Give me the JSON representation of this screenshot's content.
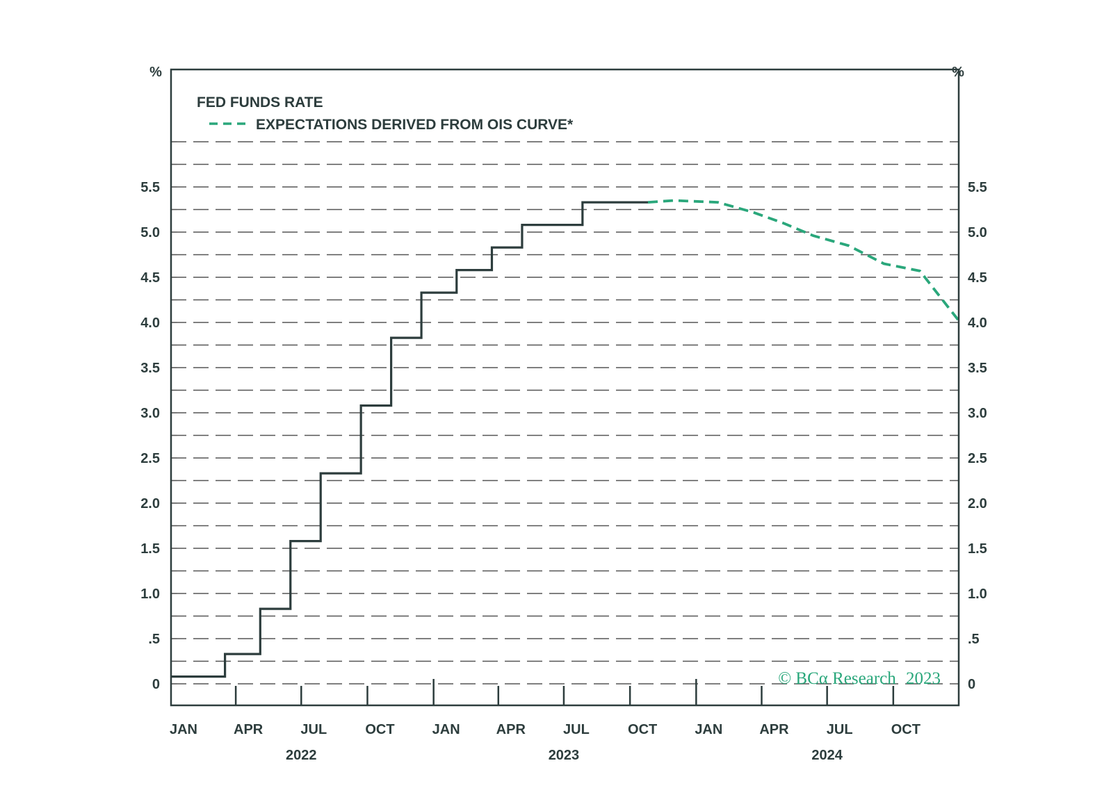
{
  "chart_data": {
    "type": "line",
    "y_unit_left": "%",
    "y_unit_right": "%",
    "ylim": [
      0,
      6
    ],
    "grid": true,
    "y_ticks": [
      {
        "value": 0,
        "label": "0"
      },
      {
        "value": 0.5,
        "label": ".5"
      },
      {
        "value": 1.0,
        "label": "1.0"
      },
      {
        "value": 1.5,
        "label": "1.5"
      },
      {
        "value": 2.0,
        "label": "2.0"
      },
      {
        "value": 2.5,
        "label": "2.5"
      },
      {
        "value": 3.0,
        "label": "3.0"
      },
      {
        "value": 3.5,
        "label": "3.5"
      },
      {
        "value": 4.0,
        "label": "4.0"
      },
      {
        "value": 4.5,
        "label": "4.5"
      },
      {
        "value": 5.0,
        "label": "5.0"
      },
      {
        "value": 5.5,
        "label": "5.5"
      }
    ],
    "xlim": [
      "2022-01-01",
      "2024-12-31"
    ],
    "x_month_ticks": [
      {
        "date": "2022-01-01",
        "label": "JAN"
      },
      {
        "date": "2022-04-01",
        "label": "APR"
      },
      {
        "date": "2022-07-01",
        "label": "JUL"
      },
      {
        "date": "2022-10-01",
        "label": "OCT"
      },
      {
        "date": "2023-01-01",
        "label": "JAN"
      },
      {
        "date": "2023-04-01",
        "label": "APR"
      },
      {
        "date": "2023-07-01",
        "label": "JUL"
      },
      {
        "date": "2023-10-01",
        "label": "OCT"
      },
      {
        "date": "2024-01-01",
        "label": "JAN"
      },
      {
        "date": "2024-04-01",
        "label": "APR"
      },
      {
        "date": "2024-07-01",
        "label": "JUL"
      },
      {
        "date": "2024-10-01",
        "label": "OCT"
      }
    ],
    "x_year_labels": [
      {
        "year": "2022",
        "date": "2022-07-01"
      },
      {
        "year": "2023",
        "date": "2023-07-01"
      },
      {
        "year": "2024",
        "date": "2024-07-01"
      }
    ],
    "legend": {
      "placement": "top-left",
      "title": "FED FUNDS RATE",
      "entries": [
        "EXPECTATIONS DERIVED FROM OIS CURVE*"
      ]
    },
    "series": [
      {
        "name": "FED FUNDS RATE",
        "color": "#2d3d3d",
        "style": "step",
        "points": [
          {
            "x": "2022-01-01",
            "y": 0.08
          },
          {
            "x": "2022-03-17",
            "y": 0.33
          },
          {
            "x": "2022-05-05",
            "y": 0.83
          },
          {
            "x": "2022-06-16",
            "y": 1.58
          },
          {
            "x": "2022-07-28",
            "y": 2.33
          },
          {
            "x": "2022-09-22",
            "y": 3.08
          },
          {
            "x": "2022-11-03",
            "y": 3.83
          },
          {
            "x": "2022-12-15",
            "y": 4.33
          },
          {
            "x": "2023-02-02",
            "y": 4.58
          },
          {
            "x": "2023-03-23",
            "y": 4.83
          },
          {
            "x": "2023-05-04",
            "y": 5.08
          },
          {
            "x": "2023-07-27",
            "y": 5.33
          },
          {
            "x": "2023-10-26",
            "y": 5.33
          }
        ]
      },
      {
        "name": "EXPECTATIONS DERIVED FROM OIS CURVE*",
        "color": "#2aa77b",
        "style": "dashed",
        "points": [
          {
            "x": "2023-10-26",
            "y": 5.33
          },
          {
            "x": "2023-12-01",
            "y": 5.35
          },
          {
            "x": "2024-01-31",
            "y": 5.33
          },
          {
            "x": "2024-03-20",
            "y": 5.22
          },
          {
            "x": "2024-05-01",
            "y": 5.1
          },
          {
            "x": "2024-06-12",
            "y": 4.96
          },
          {
            "x": "2024-07-31",
            "y": 4.85
          },
          {
            "x": "2024-09-18",
            "y": 4.65
          },
          {
            "x": "2024-11-07",
            "y": 4.57
          },
          {
            "x": "2024-12-31",
            "y": 4.02
          }
        ]
      }
    ]
  },
  "watermark": {
    "text": "© BCα Research",
    "year": "2023",
    "color": "#2aa77b"
  }
}
